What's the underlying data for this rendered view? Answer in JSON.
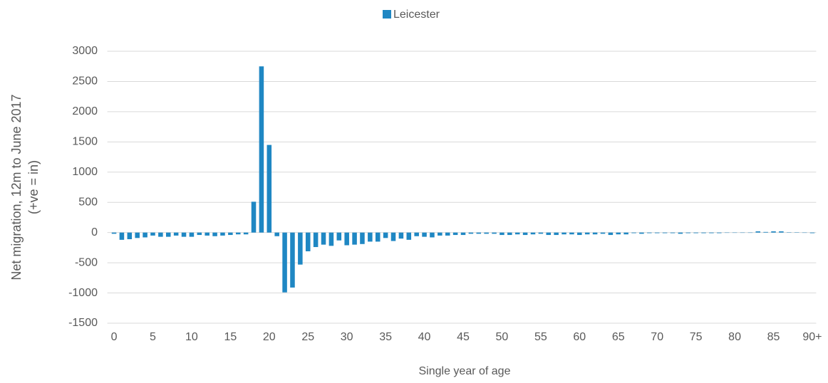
{
  "chart_data": {
    "type": "bar",
    "series": [
      {
        "name": "Leicester",
        "color": "#1f87c3",
        "values": [
          -20,
          -120,
          -110,
          -90,
          -80,
          -50,
          -70,
          -70,
          -50,
          -70,
          -70,
          -40,
          -50,
          -60,
          -50,
          -40,
          -30,
          -30,
          510,
          2750,
          1450,
          -60,
          -990,
          -910,
          -530,
          -310,
          -240,
          -200,
          -220,
          -130,
          -210,
          -200,
          -190,
          -150,
          -150,
          -90,
          -140,
          -100,
          -120,
          -60,
          -70,
          -80,
          -50,
          -50,
          -40,
          -40,
          -20,
          -20,
          -20,
          -20,
          -40,
          -40,
          -30,
          -40,
          -30,
          -20,
          -40,
          -40,
          -30,
          -30,
          -40,
          -30,
          -30,
          -20,
          -40,
          -30,
          -30,
          -10,
          -20,
          -10,
          -10,
          -10,
          -10,
          -20,
          -10,
          -10,
          -10,
          -10,
          -10,
          -5,
          -5,
          -5,
          -5,
          20,
          10,
          20,
          20,
          5,
          5,
          -5,
          -10
        ]
      }
    ],
    "categories": [
      "0",
      null,
      null,
      null,
      null,
      "5",
      null,
      null,
      null,
      null,
      "10",
      null,
      null,
      null,
      null,
      "15",
      null,
      null,
      null,
      null,
      "20",
      null,
      null,
      null,
      null,
      "25",
      null,
      null,
      null,
      null,
      "30",
      null,
      null,
      null,
      null,
      "35",
      null,
      null,
      null,
      null,
      "40",
      null,
      null,
      null,
      null,
      "45",
      null,
      null,
      null,
      null,
      "50",
      null,
      null,
      null,
      null,
      "55",
      null,
      null,
      null,
      null,
      "60",
      null,
      null,
      null,
      null,
      "65",
      null,
      null,
      null,
      null,
      "70",
      null,
      null,
      null,
      null,
      "75",
      null,
      null,
      null,
      null,
      "80",
      null,
      null,
      null,
      null,
      "85",
      null,
      null,
      null,
      null,
      "90+"
    ],
    "x_label": "Single year of age",
    "y_label": [
      "Net migration, 12m to June 2017",
      "(+ve = in)"
    ],
    "ylim": [
      -1500,
      3000
    ],
    "yticks": [
      -1500,
      -1000,
      -500,
      0,
      500,
      1000,
      1500,
      2000,
      2500,
      3000
    ],
    "grid": true,
    "legend": "top"
  }
}
